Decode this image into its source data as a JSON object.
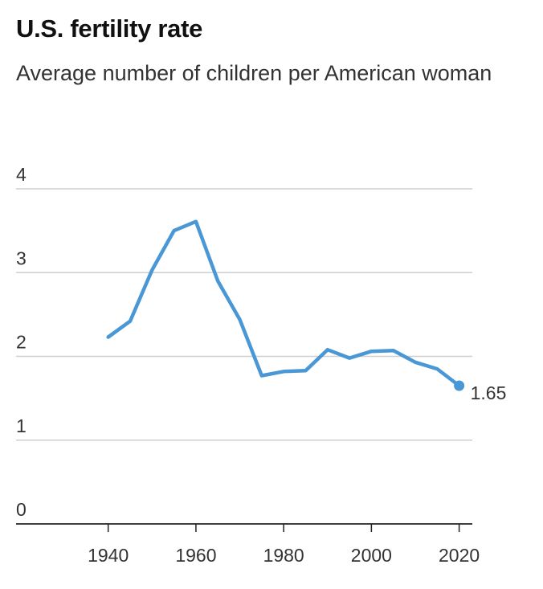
{
  "chart_data": {
    "type": "line",
    "title": "U.S. fertility rate",
    "subtitle": "Average number of children per American woman",
    "xlabel": "",
    "ylabel": "",
    "xlim": [
      1919,
      2023
    ],
    "ylim": [
      0,
      4
    ],
    "x_ticks": [
      1940,
      1960,
      1980,
      2000,
      2020
    ],
    "y_ticks": [
      0,
      1,
      2,
      3,
      4
    ],
    "grid": true,
    "legend": "none",
    "series": [
      {
        "color": "#4a97d6",
        "points": [
          {
            "x": 1940,
            "y": 2.23
          },
          {
            "x": 1945,
            "y": 2.42
          },
          {
            "x": 1950,
            "y": 3.03
          },
          {
            "x": 1955,
            "y": 3.5
          },
          {
            "x": 1960,
            "y": 3.61
          },
          {
            "x": 1965,
            "y": 2.9
          },
          {
            "x": 1970,
            "y": 2.44
          },
          {
            "x": 1975,
            "y": 1.77
          },
          {
            "x": 1980,
            "y": 1.82
          },
          {
            "x": 1985,
            "y": 1.83
          },
          {
            "x": 1990,
            "y": 2.08
          },
          {
            "x": 1995,
            "y": 1.98
          },
          {
            "x": 2000,
            "y": 2.06
          },
          {
            "x": 2005,
            "y": 2.07
          },
          {
            "x": 2010,
            "y": 1.93
          },
          {
            "x": 2015,
            "y": 1.85
          },
          {
            "x": 2020,
            "y": 1.65
          }
        ]
      }
    ],
    "end_label": "1.65",
    "colors": {
      "line": "#4a97d6",
      "grid": "#cfcfcf",
      "axis": "#222222",
      "text": "#333333"
    }
  }
}
